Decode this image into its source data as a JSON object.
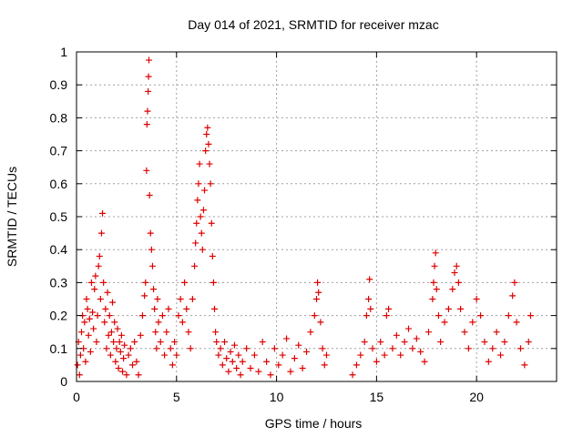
{
  "chart_data": {
    "type": "scatter",
    "title": "Day 014 of 2021, SRMTID for receiver mzac",
    "xlabel": "GPS time / hours",
    "ylabel": "SRMTID / TECUs",
    "xlim": [
      0,
      24
    ],
    "ylim": [
      0,
      1
    ],
    "xticks": [
      0,
      5,
      10,
      15,
      20
    ],
    "xtick_labels": [
      "0",
      "5",
      "10",
      "15",
      "20"
    ],
    "yticks": [
      0,
      0.1,
      0.2,
      0.3,
      0.4,
      0.5,
      0.6,
      0.7,
      0.8,
      0.9,
      1
    ],
    "ytick_labels": [
      "0",
      "0.1",
      "0.2",
      "0.3",
      "0.4",
      "0.5",
      "0.6",
      "0.7",
      "0.8",
      "0.9",
      "1"
    ],
    "grid": true,
    "marker": "+",
    "color": "#dd0000",
    "series": [
      {
        "name": "SRMTID",
        "points": [
          [
            0.05,
            0.05
          ],
          [
            0.1,
            0.12
          ],
          [
            0.15,
            0.02
          ],
          [
            0.2,
            0.08
          ],
          [
            0.25,
            0.15
          ],
          [
            0.3,
            0.2
          ],
          [
            0.35,
            0.1
          ],
          [
            0.4,
            0.18
          ],
          [
            0.45,
            0.06
          ],
          [
            0.5,
            0.25
          ],
          [
            0.55,
            0.22
          ],
          [
            0.6,
            0.14
          ],
          [
            0.65,
            0.19
          ],
          [
            0.7,
            0.09
          ],
          [
            0.75,
            0.3
          ],
          [
            0.8,
            0.21
          ],
          [
            0.85,
            0.16
          ],
          [
            0.9,
            0.28
          ],
          [
            0.95,
            0.32
          ],
          [
            1.0,
            0.12
          ],
          [
            1.05,
            0.2
          ],
          [
            1.1,
            0.35
          ],
          [
            1.15,
            0.38
          ],
          [
            1.2,
            0.25
          ],
          [
            1.25,
            0.45
          ],
          [
            1.3,
            0.51
          ],
          [
            1.35,
            0.3
          ],
          [
            1.4,
            0.18
          ],
          [
            1.45,
            0.22
          ],
          [
            1.5,
            0.1
          ],
          [
            1.55,
            0.27
          ],
          [
            1.6,
            0.14
          ],
          [
            1.65,
            0.2
          ],
          [
            1.7,
            0.08
          ],
          [
            1.75,
            0.15
          ],
          [
            1.8,
            0.24
          ],
          [
            1.85,
            0.12
          ],
          [
            1.9,
            0.18
          ],
          [
            1.95,
            0.06
          ],
          [
            2.0,
            0.1
          ],
          [
            2.05,
            0.16
          ],
          [
            2.1,
            0.04
          ],
          [
            2.15,
            0.12
          ],
          [
            2.2,
            0.09
          ],
          [
            2.25,
            0.14
          ],
          [
            2.3,
            0.03
          ],
          [
            2.35,
            0.07
          ],
          [
            2.4,
            0.11
          ],
          [
            2.5,
            0.02
          ],
          [
            2.6,
            0.08
          ],
          [
            2.7,
            0.1
          ],
          [
            2.8,
            0.05
          ],
          [
            2.9,
            0.12
          ],
          [
            3.0,
            0.06
          ],
          [
            3.1,
            0.02
          ],
          [
            3.2,
            0.14
          ],
          [
            3.3,
            0.2
          ],
          [
            3.4,
            0.26
          ],
          [
            3.45,
            0.3
          ],
          [
            3.5,
            0.64
          ],
          [
            3.52,
            0.78
          ],
          [
            3.55,
            0.82
          ],
          [
            3.58,
            0.88
          ],
          [
            3.6,
            0.925
          ],
          [
            3.62,
            0.975
          ],
          [
            3.65,
            0.565
          ],
          [
            3.7,
            0.45
          ],
          [
            3.75,
            0.4
          ],
          [
            3.8,
            0.35
          ],
          [
            3.85,
            0.28
          ],
          [
            3.9,
            0.22
          ],
          [
            3.95,
            0.15
          ],
          [
            4.0,
            0.1
          ],
          [
            4.05,
            0.25
          ],
          [
            4.1,
            0.18
          ],
          [
            4.2,
            0.12
          ],
          [
            4.3,
            0.2
          ],
          [
            4.4,
            0.08
          ],
          [
            4.5,
            0.15
          ],
          [
            4.6,
            0.22
          ],
          [
            4.7,
            0.1
          ],
          [
            4.8,
            0.05
          ],
          [
            4.9,
            0.12
          ],
          [
            5.0,
            0.08
          ],
          [
            5.1,
            0.2
          ],
          [
            5.2,
            0.25
          ],
          [
            5.3,
            0.18
          ],
          [
            5.4,
            0.3
          ],
          [
            5.5,
            0.22
          ],
          [
            5.6,
            0.15
          ],
          [
            5.7,
            0.1
          ],
          [
            5.8,
            0.25
          ],
          [
            5.9,
            0.35
          ],
          [
            5.95,
            0.42
          ],
          [
            6.0,
            0.48
          ],
          [
            6.05,
            0.55
          ],
          [
            6.1,
            0.6
          ],
          [
            6.15,
            0.66
          ],
          [
            6.2,
            0.5
          ],
          [
            6.25,
            0.45
          ],
          [
            6.3,
            0.4
          ],
          [
            6.35,
            0.52
          ],
          [
            6.4,
            0.58
          ],
          [
            6.45,
            0.7
          ],
          [
            6.5,
            0.75
          ],
          [
            6.55,
            0.77
          ],
          [
            6.6,
            0.72
          ],
          [
            6.65,
            0.66
          ],
          [
            6.7,
            0.6
          ],
          [
            6.75,
            0.48
          ],
          [
            6.8,
            0.38
          ],
          [
            6.85,
            0.3
          ],
          [
            6.9,
            0.22
          ],
          [
            6.95,
            0.15
          ],
          [
            7.0,
            0.12
          ],
          [
            7.1,
            0.08
          ],
          [
            7.2,
            0.1
          ],
          [
            7.3,
            0.05
          ],
          [
            7.4,
            0.12
          ],
          [
            7.5,
            0.07
          ],
          [
            7.6,
            0.03
          ],
          [
            7.7,
            0.09
          ],
          [
            7.8,
            0.06
          ],
          [
            7.9,
            0.11
          ],
          [
            8.0,
            0.04
          ],
          [
            8.1,
            0.08
          ],
          [
            8.2,
            0.02
          ],
          [
            8.3,
            0.06
          ],
          [
            8.5,
            0.1
          ],
          [
            8.7,
            0.04
          ],
          [
            8.9,
            0.08
          ],
          [
            9.1,
            0.03
          ],
          [
            9.3,
            0.12
          ],
          [
            9.5,
            0.06
          ],
          [
            9.7,
            0.02
          ],
          [
            9.9,
            0.1
          ],
          [
            10.1,
            0.05
          ],
          [
            10.3,
            0.08
          ],
          [
            10.5,
            0.13
          ],
          [
            10.7,
            0.03
          ],
          [
            10.9,
            0.07
          ],
          [
            11.1,
            0.11
          ],
          [
            11.3,
            0.04
          ],
          [
            11.5,
            0.09
          ],
          [
            11.7,
            0.15
          ],
          [
            11.9,
            0.2
          ],
          [
            12.0,
            0.25
          ],
          [
            12.05,
            0.3
          ],
          [
            12.1,
            0.27
          ],
          [
            12.2,
            0.18
          ],
          [
            12.3,
            0.1
          ],
          [
            12.4,
            0.05
          ],
          [
            12.5,
            0.08
          ],
          [
            13.8,
            0.02
          ],
          [
            14.0,
            0.05
          ],
          [
            14.2,
            0.08
          ],
          [
            14.4,
            0.12
          ],
          [
            14.5,
            0.2
          ],
          [
            14.6,
            0.25
          ],
          [
            14.65,
            0.31
          ],
          [
            14.7,
            0.22
          ],
          [
            14.8,
            0.1
          ],
          [
            15.0,
            0.06
          ],
          [
            15.2,
            0.12
          ],
          [
            15.4,
            0.08
          ],
          [
            15.5,
            0.2
          ],
          [
            15.6,
            0.22
          ],
          [
            15.8,
            0.1
          ],
          [
            16.0,
            0.14
          ],
          [
            16.2,
            0.08
          ],
          [
            16.4,
            0.12
          ],
          [
            16.6,
            0.16
          ],
          [
            16.8,
            0.1
          ],
          [
            17.0,
            0.13
          ],
          [
            17.2,
            0.09
          ],
          [
            17.4,
            0.06
          ],
          [
            17.6,
            0.15
          ],
          [
            17.8,
            0.25
          ],
          [
            17.85,
            0.3
          ],
          [
            17.9,
            0.35
          ],
          [
            17.95,
            0.39
          ],
          [
            18.0,
            0.28
          ],
          [
            18.1,
            0.2
          ],
          [
            18.2,
            0.12
          ],
          [
            18.4,
            0.18
          ],
          [
            18.6,
            0.22
          ],
          [
            18.8,
            0.28
          ],
          [
            18.9,
            0.33
          ],
          [
            19.0,
            0.35
          ],
          [
            19.1,
            0.3
          ],
          [
            19.2,
            0.22
          ],
          [
            19.4,
            0.15
          ],
          [
            19.6,
            0.1
          ],
          [
            19.8,
            0.18
          ],
          [
            20.0,
            0.25
          ],
          [
            20.2,
            0.2
          ],
          [
            20.4,
            0.12
          ],
          [
            20.6,
            0.06
          ],
          [
            20.8,
            0.1
          ],
          [
            21.0,
            0.15
          ],
          [
            21.2,
            0.08
          ],
          [
            21.4,
            0.12
          ],
          [
            21.6,
            0.2
          ],
          [
            21.8,
            0.26
          ],
          [
            21.9,
            0.3
          ],
          [
            22.0,
            0.18
          ],
          [
            22.2,
            0.1
          ],
          [
            22.4,
            0.05
          ],
          [
            22.6,
            0.12
          ],
          [
            22.7,
            0.2
          ]
        ]
      }
    ]
  }
}
